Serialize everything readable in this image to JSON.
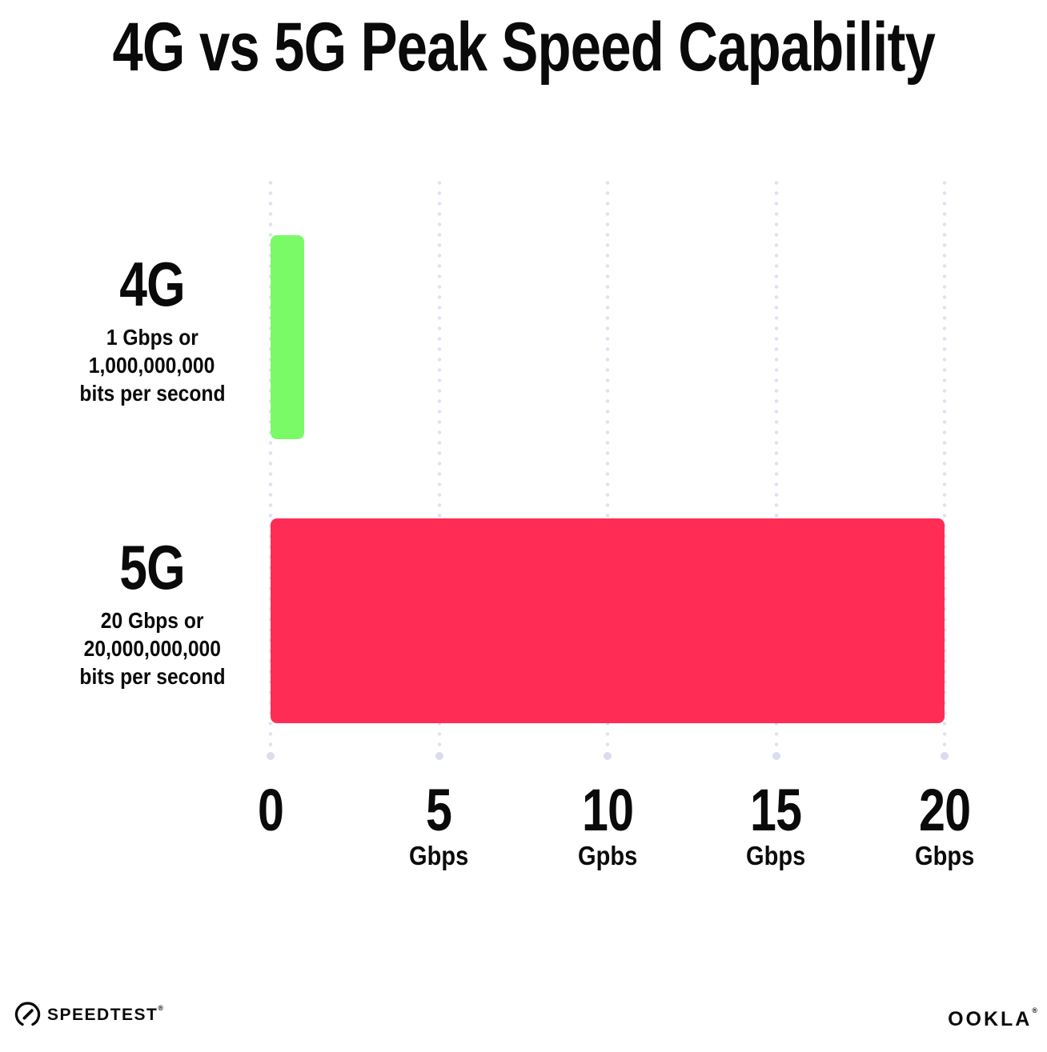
{
  "title": "4G vs 5G Peak Speed Capability",
  "colors": {
    "bar_4g": "#7afa67",
    "bar_5g": "#ff2d55",
    "gridline": "#dfe2ee",
    "text": "#0a0a0b",
    "background": "#ffffff"
  },
  "chart_data": {
    "type": "bar",
    "orientation": "horizontal",
    "title": "4G vs 5G Peak Speed Capability",
    "categories": [
      "4G",
      "5G"
    ],
    "values": [
      1,
      20
    ],
    "series_labels": [
      {
        "name": "4G",
        "sublabel_lines": [
          "1 Gbps or",
          "1,000,000,000",
          "bits per second"
        ],
        "color": "#7afa67"
      },
      {
        "name": "5G",
        "sublabel_lines": [
          "20 Gbps or",
          "20,000,000,000",
          "bits per second"
        ],
        "color": "#ff2d55"
      }
    ],
    "xlabel": "",
    "ylabel": "",
    "xlim": [
      0,
      20
    ],
    "x_ticks": [
      {
        "value": 0,
        "label": "0",
        "unit": ""
      },
      {
        "value": 5,
        "label": "5",
        "unit": "Gbps"
      },
      {
        "value": 10,
        "label": "10",
        "unit": "Gpbs"
      },
      {
        "value": 15,
        "label": "15",
        "unit": "Gbps"
      },
      {
        "value": 20,
        "label": "20",
        "unit": "Gbps"
      }
    ],
    "grid": "vertical-dotted",
    "legend": "none"
  },
  "footer": {
    "speedtest_logo": "SPEEDTEST",
    "speedtest_mark": "®",
    "speedtest_icon": "gauge-icon",
    "ookla_logo": "OOKLA",
    "ookla_mark": "®"
  }
}
